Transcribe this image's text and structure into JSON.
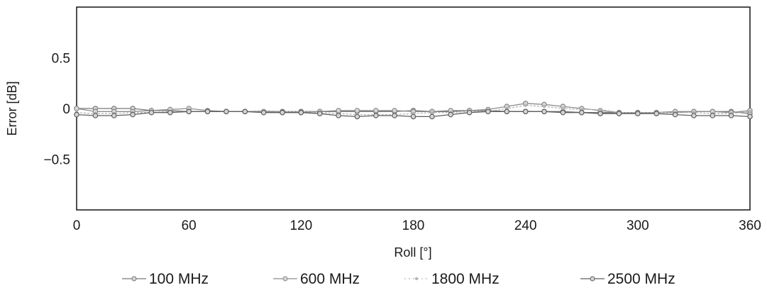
{
  "chart_data": {
    "type": "line",
    "xlabel": "Roll [°]",
    "ylabel": "Error [dB]",
    "xlim": [
      0,
      360
    ],
    "ylim": [
      -1,
      1
    ],
    "x_ticks": [
      0,
      60,
      120,
      180,
      240,
      300,
      360
    ],
    "y_ticks": [
      {
        "value": 0.5,
        "label": "0.5"
      },
      {
        "value": 0,
        "label": "0"
      },
      {
        "value": -0.5,
        "label": "−0.5"
      }
    ],
    "grid": false,
    "legend_position": "bottom",
    "x": [
      0,
      10,
      20,
      30,
      40,
      50,
      60,
      70,
      80,
      90,
      100,
      110,
      120,
      130,
      140,
      150,
      160,
      170,
      180,
      190,
      200,
      210,
      220,
      230,
      240,
      250,
      260,
      270,
      280,
      290,
      300,
      310,
      320,
      330,
      340,
      350,
      360
    ],
    "series": [
      {
        "name": "100 MHz",
        "color": "#777777",
        "marker": "circle",
        "values": [
          0.0,
          0.0,
          0.0,
          0.0,
          -0.02,
          -0.02,
          -0.03,
          -0.03,
          -0.03,
          -0.03,
          -0.03,
          -0.03,
          -0.03,
          -0.03,
          -0.03,
          -0.03,
          -0.03,
          -0.03,
          -0.02,
          -0.03,
          -0.03,
          -0.02,
          -0.02,
          -0.03,
          -0.03,
          -0.03,
          -0.03,
          -0.04,
          -0.04,
          -0.04,
          -0.04,
          -0.04,
          -0.04,
          -0.03,
          -0.03,
          -0.03,
          -0.05
        ]
      },
      {
        "name": "600 MHz",
        "color": "#8c8c8c",
        "marker": "circle",
        "values": [
          0.0,
          -0.03,
          -0.03,
          -0.03,
          -0.02,
          -0.01,
          0.0,
          -0.02,
          -0.03,
          -0.03,
          -0.03,
          -0.04,
          -0.04,
          -0.03,
          -0.02,
          -0.02,
          -0.02,
          -0.02,
          -0.03,
          -0.03,
          -0.02,
          -0.02,
          -0.01,
          0.02,
          0.05,
          0.04,
          0.02,
          0.0,
          -0.02,
          -0.04,
          -0.04,
          -0.04,
          -0.03,
          -0.03,
          -0.03,
          -0.04,
          -0.02
        ]
      },
      {
        "name": "1800 MHz",
        "color": "#b4b4b4",
        "marker": "point",
        "values": [
          -0.04,
          -0.05,
          -0.05,
          -0.04,
          -0.04,
          -0.03,
          -0.03,
          -0.03,
          -0.03,
          -0.03,
          -0.02,
          -0.03,
          -0.03,
          -0.04,
          -0.05,
          -0.06,
          -0.06,
          -0.06,
          -0.05,
          -0.04,
          -0.04,
          -0.03,
          -0.03,
          0.0,
          0.03,
          0.02,
          0.0,
          -0.01,
          -0.01,
          -0.04,
          -0.04,
          -0.04,
          -0.04,
          -0.04,
          -0.05,
          -0.05,
          -0.03
        ]
      },
      {
        "name": "2500 MHz",
        "color": "#5e5e5e",
        "marker": "circle",
        "values": [
          -0.06,
          -0.07,
          -0.07,
          -0.06,
          -0.04,
          -0.04,
          -0.03,
          -0.03,
          -0.03,
          -0.03,
          -0.04,
          -0.04,
          -0.04,
          -0.05,
          -0.07,
          -0.08,
          -0.07,
          -0.07,
          -0.08,
          -0.08,
          -0.06,
          -0.04,
          -0.03,
          -0.03,
          -0.03,
          -0.03,
          -0.04,
          -0.04,
          -0.05,
          -0.05,
          -0.05,
          -0.05,
          -0.06,
          -0.07,
          -0.07,
          -0.07,
          -0.08
        ]
      }
    ]
  }
}
